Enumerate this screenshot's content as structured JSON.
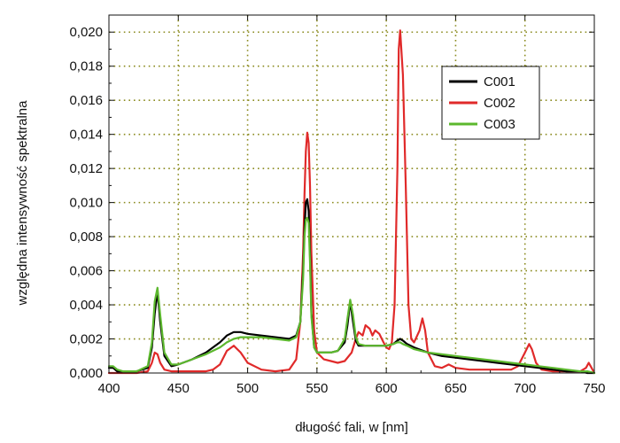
{
  "chart_data": {
    "type": "line",
    "xlabel": "długość fali, w [nm]",
    "ylabel": "względna intensywność spektralna",
    "xlim": [
      400,
      750
    ],
    "ylim": [
      0,
      0.021
    ],
    "x_ticks": [
      400,
      450,
      500,
      550,
      600,
      650,
      700,
      750
    ],
    "x_tick_labels": [
      "400",
      "450",
      "500",
      "550",
      "600",
      "650",
      "700",
      "750"
    ],
    "y_ticks": [
      0,
      0.002,
      0.004,
      0.006,
      0.008,
      0.01,
      0.012,
      0.014,
      0.016,
      0.018,
      0.02
    ],
    "y_tick_labels": [
      "0,000",
      "0,002",
      "0,004",
      "0,006",
      "0,008",
      "0,010",
      "0,012",
      "0,014",
      "0,016",
      "0,018",
      "0,020"
    ],
    "grid": true,
    "legend_position": "top-right",
    "colors": {
      "C001": "#000000",
      "C002": "#e02a2a",
      "C003": "#5cb82e",
      "grid": "#8a8a1e"
    },
    "series": [
      {
        "name": "C001",
        "color": "#000000",
        "x": [
          400,
          403,
          406,
          410,
          420,
          428,
          431,
          433,
          435,
          437,
          440,
          445,
          450,
          460,
          470,
          480,
          485,
          490,
          495,
          500,
          510,
          520,
          530,
          535,
          538,
          540,
          541,
          542,
          543,
          544,
          545,
          546,
          548,
          550,
          555,
          560,
          565,
          570,
          572,
          574,
          576,
          578,
          580,
          585,
          590,
          600,
          605,
          608,
          610,
          612,
          615,
          620,
          630,
          640,
          650,
          660,
          670,
          680,
          690,
          700,
          710,
          720,
          730,
          740,
          745,
          750
        ],
        "y": [
          0.0003,
          0.0003,
          0.0001,
          0.0001,
          0.0001,
          0.0003,
          0.0015,
          0.0035,
          0.0048,
          0.003,
          0.001,
          0.0004,
          0.0005,
          0.0008,
          0.0012,
          0.0018,
          0.0022,
          0.0024,
          0.0024,
          0.0023,
          0.0022,
          0.0021,
          0.002,
          0.0022,
          0.003,
          0.006,
          0.0085,
          0.01,
          0.0102,
          0.0095,
          0.007,
          0.0035,
          0.0015,
          0.0012,
          0.0012,
          0.0012,
          0.0013,
          0.0018,
          0.0028,
          0.0042,
          0.003,
          0.0019,
          0.0016,
          0.0016,
          0.0016,
          0.0016,
          0.0017,
          0.0019,
          0.002,
          0.0019,
          0.0017,
          0.0015,
          0.0012,
          0.001,
          0.0009,
          0.0008,
          0.0007,
          0.0006,
          0.0005,
          0.0004,
          0.0003,
          0.0002,
          0.0001,
          0.0001,
          0.0,
          0.0
        ]
      },
      {
        "name": "C002",
        "color": "#e02a2a",
        "x": [
          400,
          420,
          428,
          431,
          433,
          435,
          437,
          440,
          445,
          460,
          470,
          475,
          480,
          485,
          490,
          495,
          500,
          510,
          520,
          530,
          535,
          538,
          540,
          541,
          542,
          543,
          544,
          545,
          546,
          548,
          550,
          555,
          560,
          565,
          570,
          575,
          578,
          580,
          583,
          585,
          588,
          590,
          592,
          595,
          598,
          600,
          602,
          604,
          606,
          608,
          609,
          610,
          612,
          614,
          616,
          618,
          620,
          624,
          626,
          628,
          630,
          635,
          640,
          645,
          650,
          660,
          670,
          680,
          690,
          695,
          700,
          703,
          705,
          708,
          712,
          720,
          730,
          740,
          744,
          746,
          748,
          750
        ],
        "y": [
          0.0,
          0.0,
          0.0001,
          0.0006,
          0.0012,
          0.0011,
          0.0006,
          0.0002,
          0.0001,
          0.0001,
          0.0001,
          0.0002,
          0.0005,
          0.0013,
          0.0016,
          0.0012,
          0.0006,
          0.0002,
          0.0001,
          0.0002,
          0.0008,
          0.003,
          0.007,
          0.0105,
          0.013,
          0.0141,
          0.0135,
          0.011,
          0.007,
          0.0025,
          0.0012,
          0.0008,
          0.0007,
          0.0006,
          0.0007,
          0.0012,
          0.002,
          0.0024,
          0.0022,
          0.0028,
          0.0026,
          0.0022,
          0.0025,
          0.0023,
          0.0018,
          0.0015,
          0.0014,
          0.0018,
          0.004,
          0.012,
          0.019,
          0.0201,
          0.0175,
          0.011,
          0.004,
          0.002,
          0.0018,
          0.0025,
          0.0032,
          0.0025,
          0.0012,
          0.0004,
          0.0003,
          0.0005,
          0.0003,
          0.0002,
          0.0002,
          0.0002,
          0.0002,
          0.0004,
          0.0012,
          0.0017,
          0.0014,
          0.0006,
          0.0002,
          0.0001,
          0.0001,
          0.0001,
          0.0003,
          0.0006,
          0.0003,
          0.0
        ]
      },
      {
        "name": "C003",
        "color": "#5cb82e",
        "x": [
          400,
          403,
          406,
          410,
          420,
          428,
          431,
          433,
          435,
          437,
          440,
          445,
          450,
          460,
          470,
          480,
          485,
          490,
          495,
          500,
          510,
          520,
          530,
          535,
          538,
          540,
          541,
          542,
          543,
          544,
          545,
          546,
          548,
          550,
          555,
          560,
          565,
          570,
          572,
          574,
          576,
          578,
          580,
          585,
          590,
          600,
          605,
          608,
          610,
          612,
          615,
          620,
          630,
          640,
          650,
          660,
          670,
          680,
          690,
          700,
          710,
          720,
          730,
          740,
          745,
          750
        ],
        "y": [
          0.0004,
          0.0004,
          0.0002,
          0.0001,
          0.0001,
          0.0004,
          0.0018,
          0.0042,
          0.005,
          0.0034,
          0.0012,
          0.0005,
          0.0005,
          0.0008,
          0.0011,
          0.0015,
          0.0018,
          0.002,
          0.0021,
          0.0021,
          0.0021,
          0.002,
          0.0019,
          0.0021,
          0.003,
          0.0055,
          0.008,
          0.009,
          0.0091,
          0.0088,
          0.0065,
          0.0033,
          0.0015,
          0.0012,
          0.0012,
          0.0012,
          0.0013,
          0.002,
          0.0032,
          0.0043,
          0.0034,
          0.0021,
          0.0017,
          0.0016,
          0.0016,
          0.0016,
          0.0017,
          0.0018,
          0.0018,
          0.0017,
          0.0016,
          0.0014,
          0.0012,
          0.0011,
          0.001,
          0.0009,
          0.0008,
          0.0007,
          0.0006,
          0.0005,
          0.0004,
          0.0003,
          0.0002,
          0.0001,
          0.0001,
          0.0
        ]
      }
    ]
  }
}
